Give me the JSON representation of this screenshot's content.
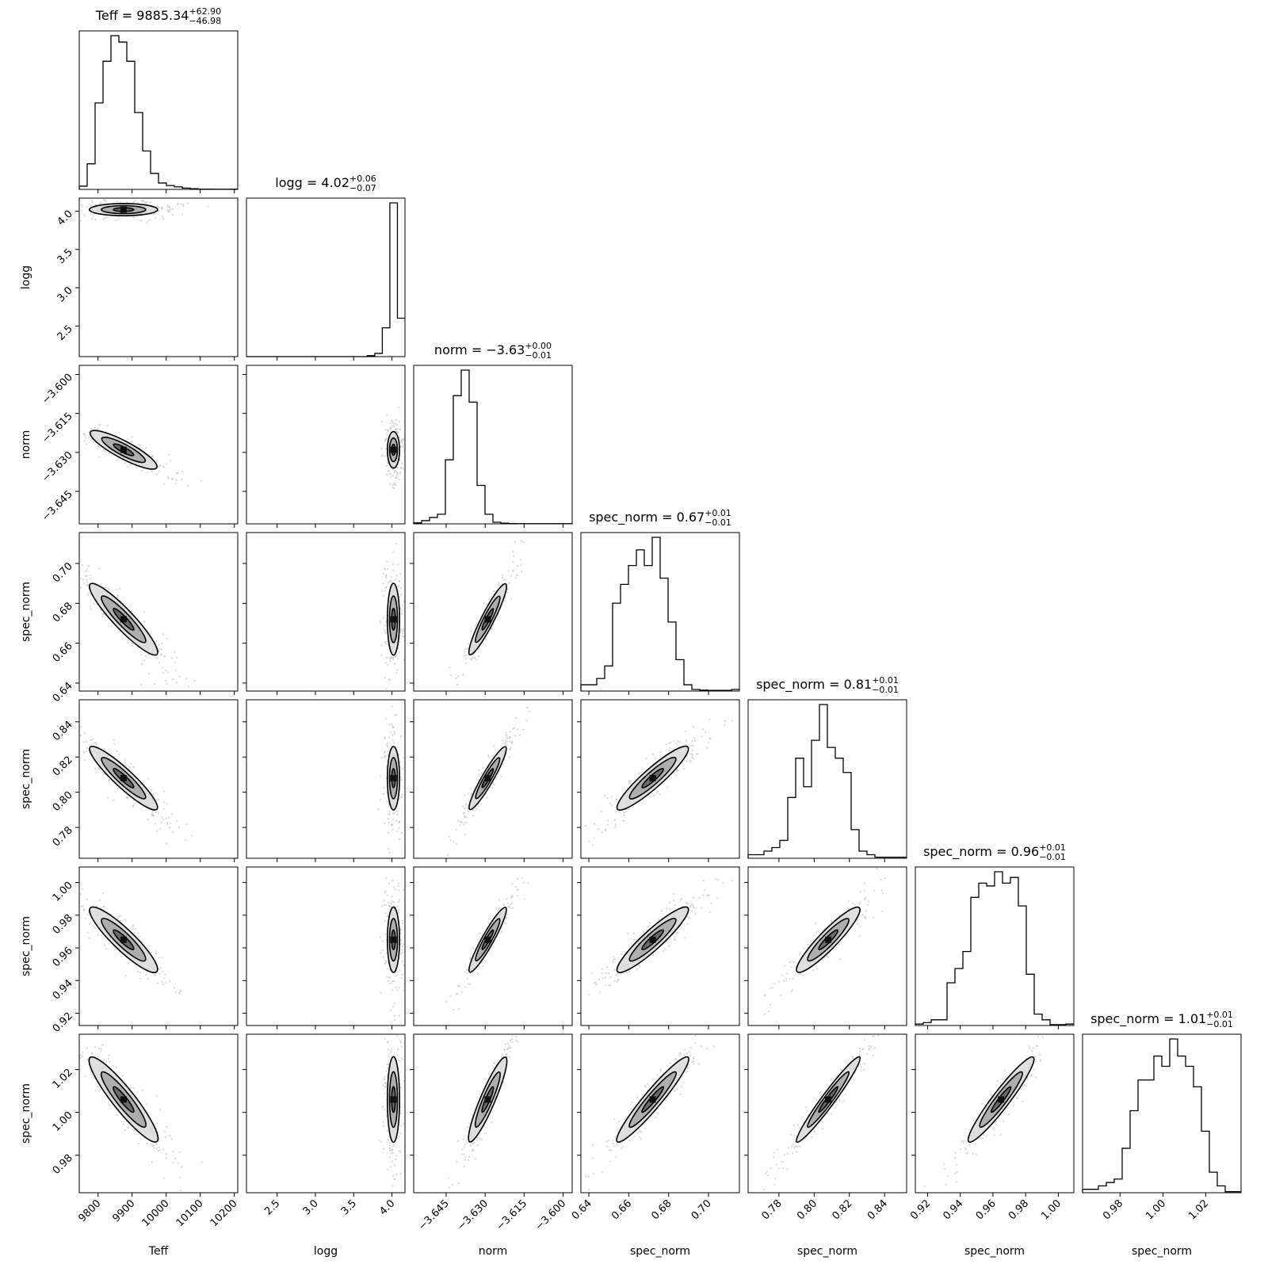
{
  "chart_data": {
    "type": "corner",
    "parameters": [
      {
        "name": "Teff",
        "range": [
          9745,
          10210
        ],
        "ticks": [
          9800,
          9900,
          10000,
          10100,
          10200
        ],
        "tick_labels": [
          "9800",
          "9900",
          "10000",
          "10100",
          "10200"
        ],
        "title": {
          "label": "Teff",
          "value": "9885.34",
          "plus": "+62.90",
          "minus": "−46.98"
        },
        "hist": {
          "edges": [
            9745,
            10210
          ],
          "counts": [
            1,
            8,
            27,
            40,
            48,
            46,
            40,
            24,
            12,
            5,
            2,
            1.2,
            0.8,
            0.4,
            0.2,
            0.1,
            0.1,
            0.05,
            0.05,
            0.1
          ]
        },
        "peak": 9875,
        "spread": 50
      },
      {
        "name": "logg",
        "range": [
          2.1,
          4.17
        ],
        "ticks": [
          2.5,
          3.0,
          3.5,
          4.0
        ],
        "tick_labels": [
          "2.5",
          "3.0",
          "3.5",
          "4.0"
        ],
        "title": {
          "label": "logg",
          "value": "4.02",
          "plus": "+0.06",
          "minus": "−0.07"
        },
        "hist": {
          "edges": [
            2.1,
            4.17
          ],
          "counts": [
            0,
            0,
            0,
            0,
            0,
            0,
            0,
            0,
            0,
            0,
            0,
            0,
            0,
            0,
            0,
            0,
            0.3,
            1,
            9,
            48,
            12
          ]
        },
        "peak": 4.02,
        "spread": 0.04
      },
      {
        "name": "norm",
        "range": [
          -3.6575,
          -3.5965
        ],
        "ticks": [
          -3.645,
          -3.63,
          -3.615,
          -3.6
        ],
        "tick_labels": [
          "−3.645",
          "−3.630",
          "−3.615",
          "−3.600"
        ],
        "title": {
          "label": "norm",
          "value": "−3.63",
          "plus": "+0.00",
          "minus": "−0.01"
        },
        "hist": {
          "edges": [
            -3.6575,
            -3.5965
          ],
          "counts": [
            0.3,
            1,
            2,
            3,
            20,
            40,
            48,
            38,
            12,
            3,
            0.5,
            0.2,
            0.1,
            0.05,
            0.05,
            0.05,
            0.05,
            0.05,
            0.05,
            0.05
          ]
        },
        "peak": -3.629,
        "spread": 0.0035
      },
      {
        "name": "spec_norm",
        "range": [
          0.636,
          0.7155
        ],
        "ticks": [
          0.64,
          0.66,
          0.68,
          0.7
        ],
        "tick_labels": [
          "0.64",
          "0.66",
          "0.68",
          "0.70"
        ],
        "title": {
          "label": "spec_norm",
          "value": "0.67",
          "plus": "+0.01",
          "minus": "−0.01"
        },
        "hist": {
          "edges": [
            0.636,
            0.7155
          ],
          "counts": [
            2,
            2,
            4,
            8,
            28,
            34,
            40,
            45,
            40,
            49,
            36,
            22,
            10,
            2,
            0.5,
            0.3,
            0.2,
            0.2,
            0.2,
            0.5
          ]
        },
        "peak": 0.672,
        "spread": 0.009
      },
      {
        "name": "spec_norm",
        "range": [
          0.7625,
          0.8525
        ],
        "ticks": [
          0.78,
          0.8,
          0.82,
          0.84
        ],
        "tick_labels": [
          "0.78",
          "0.80",
          "0.82",
          "0.84"
        ],
        "title": {
          "label": "spec_norm",
          "value": "0.81",
          "plus": "+0.01",
          "minus": "−0.01"
        },
        "hist": {
          "edges": [
            0.7625,
            0.8525
          ],
          "counts": [
            1,
            1,
            2,
            3,
            5,
            17,
            28,
            20,
            33,
            43,
            31,
            28,
            24,
            8,
            2,
            1,
            0.3,
            0.3,
            0.3,
            0.3
          ]
        },
        "peak": 0.808,
        "spread": 0.009
      },
      {
        "name": "spec_norm",
        "range": [
          0.9125,
          1.0095
        ],
        "ticks": [
          0.92,
          0.94,
          0.96,
          0.98,
          1.0
        ],
        "tick_labels": [
          "0.92",
          "0.94",
          "0.96",
          "0.98",
          "1.00"
        ],
        "title": {
          "label": "spec_norm",
          "value": "0.96",
          "plus": "+0.01",
          "minus": "−0.01"
        },
        "hist": {
          "edges": [
            0.9125,
            1.0095
          ],
          "counts": [
            0.5,
            1,
            2,
            2,
            15,
            20,
            26,
            45,
            50,
            49,
            54,
            50,
            52,
            42,
            18,
            4,
            2,
            0.3,
            0.3,
            0.5
          ]
        },
        "peak": 0.965,
        "spread": 0.01
      },
      {
        "name": "spec_norm",
        "range": [
          0.9625,
          1.0365
        ],
        "ticks": [
          0.98,
          1.0,
          1.02
        ],
        "tick_labels": [
          "0.98",
          "1.00",
          "1.02"
        ],
        "title": {
          "label": "spec_norm",
          "value": "1.01",
          "plus": "+0.01",
          "minus": "−0.01"
        },
        "hist": {
          "edges": [
            0.9625,
            1.0365
          ],
          "counts": [
            1,
            1,
            2,
            3,
            4,
            13,
            24,
            33,
            33,
            40,
            37,
            45,
            40,
            37,
            31,
            18,
            6,
            2,
            0.3,
            0.3
          ]
        },
        "peak": 1.006,
        "spread": 0.01
      }
    ],
    "correlations": [
      [
        1.0,
        0,
        -0.9,
        -0.92,
        -0.92,
        -0.9,
        -0.92
      ],
      [
        0,
        1.0,
        0,
        0,
        0,
        0,
        0
      ],
      [
        -0.9,
        0,
        1.0,
        0.95,
        0.95,
        0.95,
        0.95
      ],
      [
        -0.92,
        0,
        0.95,
        1.0,
        0.92,
        0.92,
        0.95
      ],
      [
        -0.92,
        0,
        0.95,
        0.92,
        1.0,
        0.92,
        0.97
      ],
      [
        -0.9,
        0,
        0.95,
        0.92,
        0.92,
        1.0,
        0.95
      ],
      [
        -0.92,
        0,
        0.95,
        0.95,
        0.97,
        0.95,
        1.0
      ]
    ],
    "contour_levels": [
      "39%",
      "86%",
      "99%"
    ],
    "grid": "off",
    "legend": "none"
  }
}
